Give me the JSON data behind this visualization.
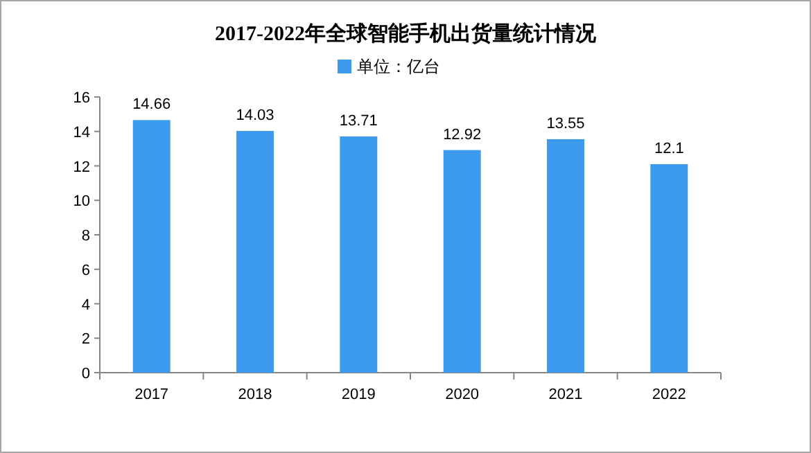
{
  "chart_data": {
    "type": "bar",
    "title": "2017-2022年全球智能手机出货量统计情况",
    "categories": [
      "2017",
      "2018",
      "2019",
      "2020",
      "2021",
      "2022"
    ],
    "series": [
      {
        "name": "单位：亿台",
        "color": "#3d9bed",
        "values": [
          14.66,
          14.03,
          13.71,
          12.92,
          13.55,
          12.1
        ]
      }
    ],
    "ylim": [
      0,
      16
    ],
    "yticks": [
      0,
      2,
      4,
      6,
      8,
      10,
      12,
      14,
      16
    ],
    "data_labels": true,
    "legend": "top",
    "grid": false
  }
}
